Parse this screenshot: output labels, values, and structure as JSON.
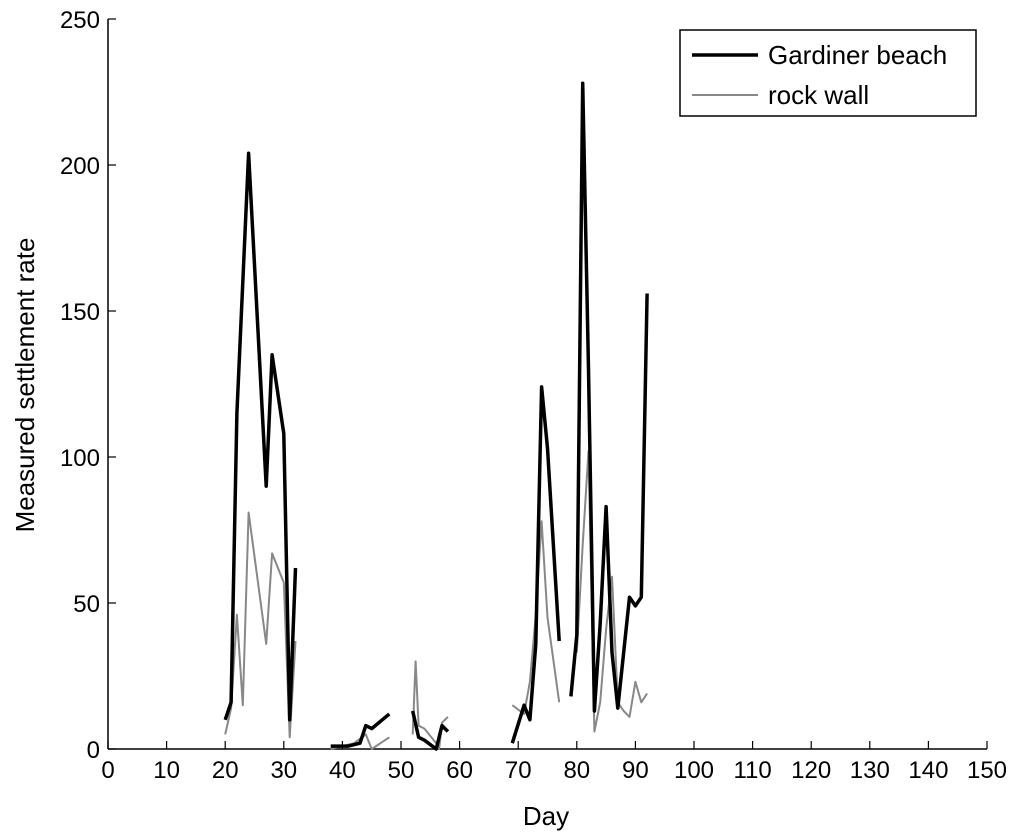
{
  "chart_data": {
    "type": "line",
    "title": "",
    "xlabel": "Day",
    "ylabel": "Measured settlement rate",
    "xlim": [
      0,
      150
    ],
    "ylim": [
      0,
      250
    ],
    "xticks": [
      0,
      10,
      20,
      30,
      40,
      50,
      60,
      70,
      80,
      90,
      100,
      110,
      120,
      130,
      140,
      150
    ],
    "yticks": [
      0,
      50,
      100,
      150,
      200,
      250
    ],
    "grid": false,
    "legend_position": "top-right",
    "series": [
      {
        "name": "Gardiner beach",
        "color": "#000000",
        "style": "thick",
        "segments": [
          [
            [
              20,
              10
            ],
            [
              21,
              16
            ],
            [
              22,
              115
            ],
            [
              24,
              204
            ],
            [
              27,
              90
            ],
            [
              28,
              135
            ],
            [
              30,
              108
            ],
            [
              31,
              10
            ],
            [
              32,
              62
            ]
          ],
          [
            [
              38,
              1
            ],
            [
              39,
              1
            ],
            [
              40,
              1
            ],
            [
              41,
              1
            ],
            [
              43,
              2
            ],
            [
              44,
              8
            ],
            [
              45,
              7
            ],
            [
              48,
              12
            ]
          ],
          [
            [
              52,
              13
            ],
            [
              53,
              4
            ],
            [
              54,
              3
            ],
            [
              56,
              0
            ],
            [
              57,
              8
            ],
            [
              58,
              6
            ]
          ],
          [
            [
              69,
              2
            ],
            [
              71,
              15
            ],
            [
              72,
              10
            ],
            [
              73,
              36
            ],
            [
              74,
              124
            ],
            [
              75,
              103
            ],
            [
              77,
              37
            ]
          ],
          [
            [
              79,
              18
            ],
            [
              80,
              39
            ],
            [
              81,
              228
            ],
            [
              82,
              130
            ],
            [
              83,
              13
            ],
            [
              84,
              43
            ],
            [
              85,
              83
            ],
            [
              86,
              33
            ],
            [
              87,
              14
            ],
            [
              89,
              52
            ],
            [
              90,
              49
            ],
            [
              91,
              52
            ],
            [
              92,
              156
            ]
          ]
        ]
      },
      {
        "name": "rock wall",
        "color": "#888888",
        "style": "thin",
        "segments": [
          [
            [
              20,
              5
            ],
            [
              21,
              14
            ],
            [
              22,
              46
            ],
            [
              23,
              15
            ],
            [
              24,
              81
            ],
            [
              27,
              36
            ],
            [
              28,
              67
            ],
            [
              30,
              57
            ],
            [
              31,
              4
            ],
            [
              32,
              37
            ]
          ],
          [
            [
              38,
              0
            ],
            [
              40,
              1
            ],
            [
              42,
              2
            ],
            [
              44,
              5
            ],
            [
              45,
              0
            ],
            [
              48,
              4
            ]
          ],
          [
            [
              52,
              5
            ],
            [
              52.5,
              30
            ],
            [
              53,
              8
            ],
            [
              54,
              7
            ],
            [
              56,
              2
            ],
            [
              56.5,
              0
            ],
            [
              57,
              9
            ],
            [
              58,
              11
            ]
          ],
          [
            [
              69,
              15
            ],
            [
              71,
              12
            ],
            [
              72,
              23
            ],
            [
              73,
              46
            ],
            [
              74,
              78
            ],
            [
              75,
              45
            ],
            [
              77,
              16
            ]
          ],
          [
            [
              80,
              33
            ],
            [
              81,
              70
            ],
            [
              82,
              102
            ],
            [
              83,
              6
            ],
            [
              84,
              16
            ],
            [
              85,
              41
            ],
            [
              86,
              59
            ],
            [
              87,
              16
            ],
            [
              88,
              13
            ],
            [
              89,
              11
            ],
            [
              90,
              23
            ],
            [
              91,
              16
            ],
            [
              92,
              19
            ]
          ]
        ]
      }
    ]
  }
}
